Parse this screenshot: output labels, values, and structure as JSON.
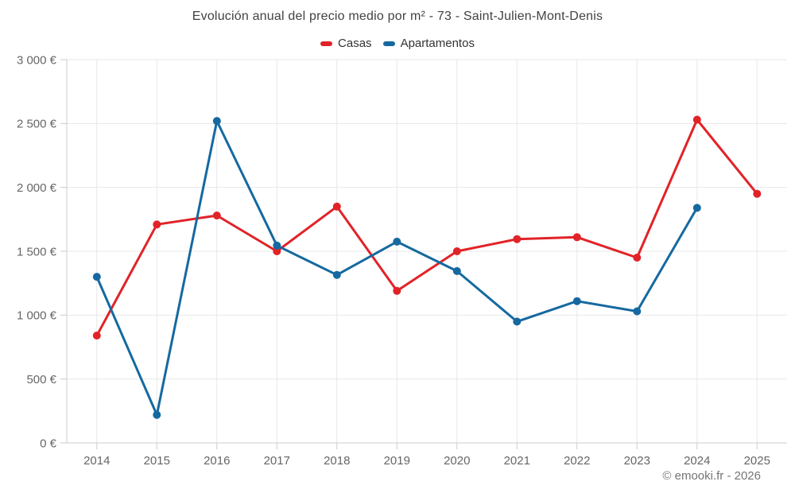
{
  "page": {
    "title": "Evolución anual del precio medio por m² - 73 - Saint-Julien-Mont-Denis",
    "watermark": "© emooki.fr - 2026"
  },
  "legend": {
    "items": [
      {
        "label": "Casas",
        "color": "#e12328"
      },
      {
        "label": "Apartamentos",
        "color": "#1569a0"
      }
    ]
  },
  "chart_data": {
    "type": "line",
    "title": "Evolución anual del precio medio por m² - 73 - Saint-Julien-Mont-Denis",
    "categories": [
      "2014",
      "2015",
      "2016",
      "2017",
      "2018",
      "2019",
      "2020",
      "2021",
      "2022",
      "2023",
      "2024",
      "2025"
    ],
    "series": [
      {
        "name": "Casas",
        "color": "#e12328",
        "values": [
          840,
          1710,
          1780,
          1500,
          1850,
          1190,
          1500,
          1595,
          1610,
          1450,
          2530,
          1950
        ]
      },
      {
        "name": "Apartamentos",
        "color": "#1569a0",
        "values": [
          1300,
          220,
          2520,
          1545,
          1315,
          1575,
          1345,
          950,
          1110,
          1030,
          1840,
          null
        ]
      }
    ],
    "xlabel": "",
    "ylabel": "",
    "ylim": [
      0,
      3000
    ],
    "ytick_step": 500,
    "ytick_suffix": " €",
    "grid": true,
    "legend_position": "top",
    "colors": {
      "grid": "#e8e8e8",
      "axis": "#cccccc",
      "tick_label": "#666666",
      "title": "#424242",
      "watermark": "#757575"
    }
  }
}
